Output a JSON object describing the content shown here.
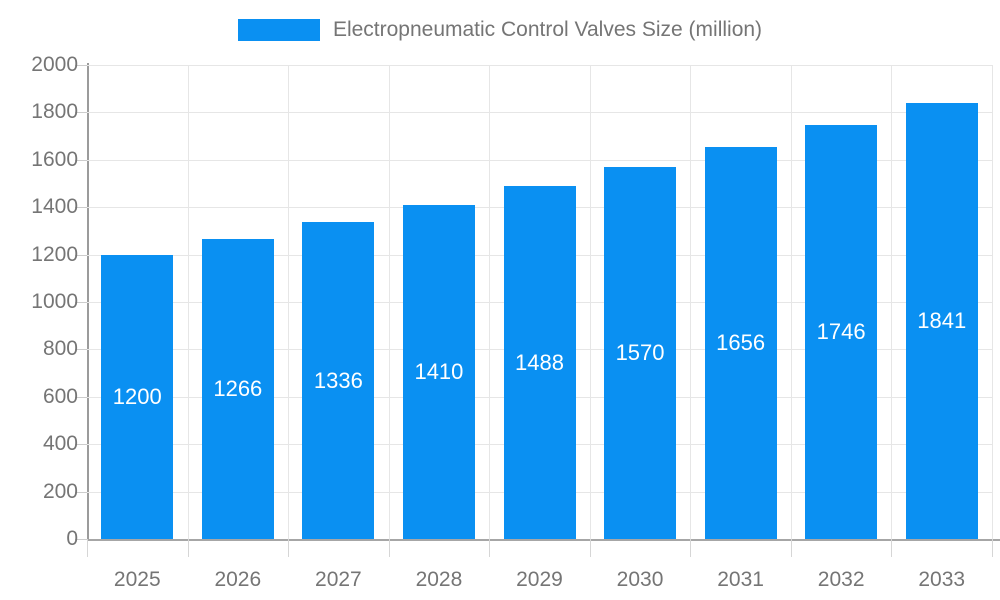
{
  "legend": {
    "label": "Electropneumatic Control Valves Size (million)"
  },
  "chart_data": {
    "type": "bar",
    "title": "Electropneumatic Control Valves Size (million)",
    "categories": [
      "2025",
      "2026",
      "2027",
      "2028",
      "2029",
      "2030",
      "2031",
      "2032",
      "2033"
    ],
    "values": [
      1200,
      1266,
      1336,
      1410,
      1488,
      1570,
      1656,
      1746,
      1841
    ],
    "series": [
      {
        "name": "Electropneumatic Control Valves Size (million)",
        "values": [
          1200,
          1266,
          1336,
          1410,
          1488,
          1570,
          1656,
          1746,
          1841
        ]
      }
    ],
    "xlabel": "",
    "ylabel": "",
    "ylim": [
      0,
      2000
    ],
    "ytick_step": 200,
    "ytick_labels": [
      "0",
      "200",
      "400",
      "600",
      "800",
      "1000",
      "1200",
      "1400",
      "1600",
      "1800",
      "2000"
    ],
    "grid": true,
    "legend_position": "top",
    "value_labels_position": "inside-center",
    "colors": {
      "bar": "#0a90f2",
      "value_label": "#ffffff",
      "grid": "#e6e6e6",
      "axis": "#9b9b9b",
      "tick": "#cccccc",
      "text": "#757575",
      "background": "#ffffff"
    }
  }
}
